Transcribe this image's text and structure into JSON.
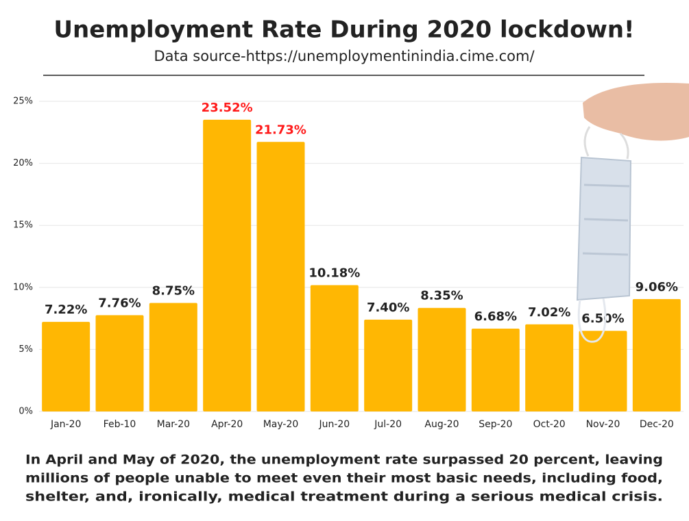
{
  "chart_data": {
    "type": "bar",
    "title": "Unemployment Rate During 2020 lockdown!",
    "subtitle": "Data source-https://unemploymentinindia.cime.com/",
    "categories": [
      "Jan-20",
      "Feb-10",
      "Mar-20",
      "Apr-20",
      "May-20",
      "Jun-20",
      "Jul-20",
      "Aug-20",
      "Sep-20",
      "Oct-20",
      "Nov-20",
      "Dec-20"
    ],
    "values": [
      7.22,
      7.76,
      8.75,
      23.52,
      21.73,
      10.18,
      7.4,
      8.35,
      6.68,
      7.02,
      6.5,
      9.06
    ],
    "value_labels": [
      "7.22%",
      "7.76%",
      "8.75%",
      "23.52%",
      "21.73%",
      "10.18%",
      "7.40%",
      "8.35%",
      "6.68%",
      "7.02%",
      "6.50%",
      "9.06%"
    ],
    "value_label_colors": [
      "#222222",
      "#222222",
      "#222222",
      "#ff1a1a",
      "#ff1a1a",
      "#222222",
      "#222222",
      "#222222",
      "#222222",
      "#222222",
      "#222222",
      "#222222"
    ],
    "color": "#ffb703",
    "ylim": [
      0,
      25
    ],
    "yticks": [
      {
        "value": 0,
        "label": "0%"
      },
      {
        "value": 5,
        "label": "5%"
      },
      {
        "value": 10,
        "label": "10%"
      },
      {
        "value": 15,
        "label": "15%"
      },
      {
        "value": 20,
        "label": "20%"
      },
      {
        "value": 25,
        "label": "25%"
      }
    ],
    "grid": true,
    "annotations": [
      "In April and May of 2020, the unemployment rate surpassed 20 percent, leaving",
      "millions of people unable to meet even their most basic needs, including food,",
      "shelter, and, ironically, medical treatment during a serious medical crisis."
    ]
  }
}
